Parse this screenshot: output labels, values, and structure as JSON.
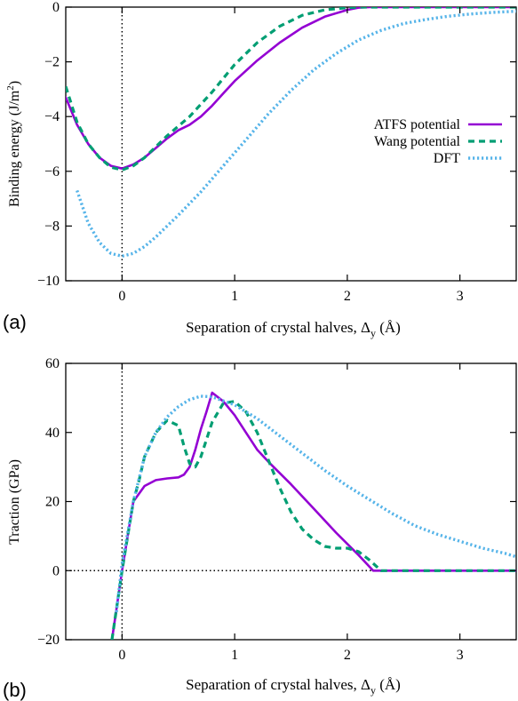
{
  "colors": {
    "atfs": "#9400d3",
    "wang": "#009e73",
    "dft": "#56b4e9",
    "axis": "#000000",
    "background": "#ffffff"
  },
  "chart_data": [
    {
      "panel_label": "(a)",
      "type": "line",
      "xlabel": "Separation of crystal halves, Δ",
      "xlabel_sub": "y",
      "xlabel_unit": "(Å)",
      "ylabel": "Binding energy (J/m",
      "ylabel_sup": "2",
      "ylabel_tail": ")",
      "xlim": [
        -0.5,
        3.5
      ],
      "ylim": [
        -10,
        0
      ],
      "xticks": [
        0,
        1,
        2,
        3
      ],
      "yticks": [
        -10,
        -8,
        -6,
        -4,
        -2,
        0
      ],
      "legend_position": "right",
      "reference_lines": {
        "vertical_x": 0
      },
      "series": [
        {
          "name": "ATFS potential",
          "style": "solid",
          "color": "#9400d3",
          "x": [
            -0.5,
            -0.4,
            -0.3,
            -0.2,
            -0.1,
            0.0,
            0.1,
            0.2,
            0.3,
            0.4,
            0.5,
            0.6,
            0.7,
            0.8,
            0.9,
            1.0,
            1.2,
            1.4,
            1.6,
            1.8,
            2.0,
            2.1,
            2.2,
            3.5
          ],
          "y": [
            -3.3,
            -4.3,
            -5.0,
            -5.5,
            -5.8,
            -5.9,
            -5.75,
            -5.5,
            -5.15,
            -4.8,
            -4.5,
            -4.3,
            -4.0,
            -3.6,
            -3.15,
            -2.7,
            -1.95,
            -1.3,
            -0.75,
            -0.35,
            -0.1,
            -0.02,
            0.0,
            0.0
          ]
        },
        {
          "name": "Wang potential",
          "style": "dashed",
          "color": "#009e73",
          "x": [
            -0.5,
            -0.4,
            -0.3,
            -0.2,
            -0.1,
            0.0,
            0.1,
            0.2,
            0.3,
            0.4,
            0.5,
            0.6,
            0.7,
            0.8,
            0.9,
            1.0,
            1.2,
            1.4,
            1.6,
            1.8,
            2.0,
            2.1,
            2.2,
            3.5
          ],
          "y": [
            -2.9,
            -4.2,
            -5.0,
            -5.5,
            -5.85,
            -5.95,
            -5.8,
            -5.5,
            -5.1,
            -4.7,
            -4.35,
            -4.0,
            -3.55,
            -3.1,
            -2.6,
            -2.1,
            -1.3,
            -0.7,
            -0.3,
            -0.1,
            -0.02,
            0.0,
            0.0,
            0.0
          ]
        },
        {
          "name": "DFT",
          "style": "dotted",
          "color": "#56b4e9",
          "x": [
            -0.4,
            -0.3,
            -0.2,
            -0.1,
            0.0,
            0.1,
            0.2,
            0.3,
            0.5,
            0.7,
            0.9,
            1.1,
            1.3,
            1.5,
            1.7,
            1.9,
            2.1,
            2.3,
            2.5,
            2.7,
            2.9,
            3.1,
            3.3,
            3.5
          ],
          "y": [
            -6.7,
            -7.9,
            -8.6,
            -9.0,
            -9.1,
            -9.0,
            -8.75,
            -8.4,
            -7.6,
            -6.75,
            -5.8,
            -4.85,
            -3.9,
            -3.05,
            -2.3,
            -1.7,
            -1.2,
            -0.85,
            -0.6,
            -0.45,
            -0.33,
            -0.25,
            -0.19,
            -0.15
          ]
        }
      ]
    },
    {
      "panel_label": "(b)",
      "type": "line",
      "xlabel": "Separation of crystal halves, Δ",
      "xlabel_sub": "y",
      "xlabel_unit": "(Å)",
      "ylabel": "Traction (GPa)",
      "xlim": [
        -0.5,
        3.5
      ],
      "ylim": [
        -20,
        60
      ],
      "xticks": [
        0,
        1,
        2,
        3
      ],
      "yticks": [
        -20,
        0,
        20,
        40,
        60
      ],
      "reference_lines": {
        "vertical_x": 0,
        "horizontal_y": 0
      },
      "series": [
        {
          "name": "ATFS potential",
          "style": "solid",
          "color": "#9400d3",
          "x": [
            -0.09,
            0.0,
            0.05,
            0.1,
            0.2,
            0.3,
            0.4,
            0.5,
            0.55,
            0.6,
            0.65,
            0.7,
            0.75,
            0.8,
            0.9,
            1.0,
            1.1,
            1.2,
            1.3,
            1.5,
            1.7,
            1.9,
            2.1,
            2.23,
            3.5
          ],
          "y": [
            -20,
            0,
            10,
            20,
            24.5,
            26.2,
            26.7,
            27.0,
            27.8,
            30,
            35,
            41,
            46,
            51.5,
            49,
            45,
            40,
            35,
            31.5,
            25,
            18,
            11,
            4.5,
            0,
            0
          ]
        },
        {
          "name": "Wang potential",
          "style": "dashed",
          "color": "#009e73",
          "x": [
            -0.09,
            0.0,
            0.05,
            0.1,
            0.15,
            0.2,
            0.3,
            0.4,
            0.5,
            0.55,
            0.6,
            0.65,
            0.7,
            0.8,
            0.9,
            1.0,
            1.1,
            1.2,
            1.3,
            1.4,
            1.5,
            1.6,
            1.7,
            1.8,
            1.9,
            2.0,
            2.1,
            2.2,
            2.3,
            3.5
          ],
          "y": [
            -20,
            0,
            10,
            20,
            26,
            33,
            40,
            43.5,
            42,
            36,
            31,
            30,
            33,
            43,
            48.5,
            49,
            46,
            40,
            32,
            24,
            17,
            12,
            9,
            7,
            6.5,
            6.5,
            5.5,
            3,
            0,
            0
          ]
        },
        {
          "name": "DFT",
          "style": "dotted",
          "color": "#56b4e9",
          "x": [
            -0.05,
            0.0,
            0.1,
            0.2,
            0.3,
            0.4,
            0.5,
            0.6,
            0.7,
            0.8,
            1.0,
            1.2,
            1.4,
            1.6,
            1.8,
            2.0,
            2.2,
            2.4,
            2.6,
            2.8,
            3.0,
            3.2,
            3.4,
            3.5
          ],
          "y": [
            -12,
            2,
            20,
            33,
            40,
            44.5,
            47.5,
            49.5,
            50.5,
            50.3,
            48,
            44,
            39,
            34,
            29,
            24.5,
            20.5,
            16.5,
            13,
            10.5,
            8.5,
            6.5,
            5,
            4
          ]
        }
      ]
    }
  ]
}
